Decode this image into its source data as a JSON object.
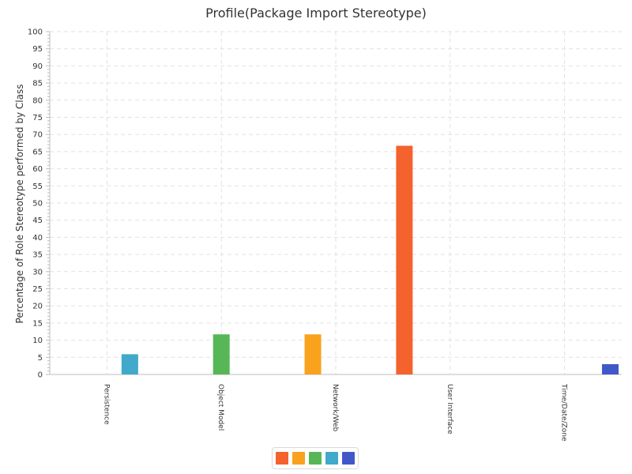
{
  "chart_data": {
    "type": "bar",
    "title": "Profile(Package Import Stereotype)",
    "xlabel": "",
    "ylabel": "Percentage of Role Stereotype performed by Class",
    "ylim": [
      0,
      100
    ],
    "y_major_step": 5,
    "y_minor_step": 1,
    "grid": true,
    "legend_placement": "bottom-center",
    "categories": [
      "Persistence",
      "Object Model",
      "Network/Web",
      "User Interface",
      "Time/Date/Zone"
    ],
    "series": [
      {
        "color": "#f4622d",
        "values": [
          0,
          0,
          0,
          66.7,
          0
        ]
      },
      {
        "color": "#f9a21d",
        "values": [
          0,
          0,
          11.7,
          0,
          0
        ]
      },
      {
        "color": "#57b757",
        "values": [
          0,
          11.7,
          0,
          0,
          0
        ]
      },
      {
        "color": "#41a9c9",
        "values": [
          5.9,
          0,
          0,
          0,
          0
        ]
      },
      {
        "color": "#4258c9",
        "values": [
          0,
          0,
          0,
          0,
          3.0
        ]
      }
    ]
  }
}
